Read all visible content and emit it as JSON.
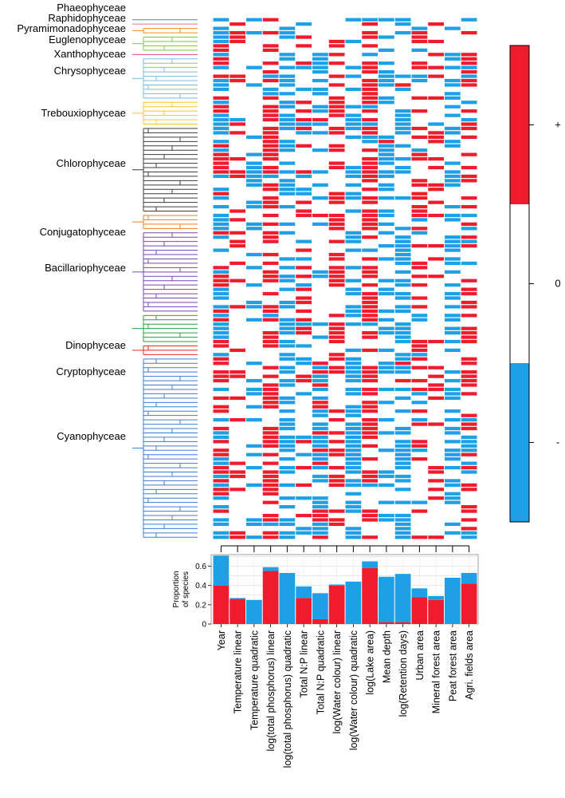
{
  "chart_data": [
    {
      "type": "heatmap",
      "title": "",
      "legend": {
        "plus_label": "+",
        "zero_label": "0",
        "minus_label": "-",
        "positive_color": "#f01b2d",
        "zero_color": "#ffffff",
        "negative_color": "#1ea0e6"
      },
      "taxonomic_groups": [
        {
          "name": "Phaeophyceae",
          "color": "#7a7a7a",
          "n": 1
        },
        {
          "name": "Raphidophyceae",
          "color": "#e07b7b",
          "n": 1
        },
        {
          "name": "Pyramimonadophyceae",
          "color": "#f08c1e",
          "n": 2
        },
        {
          "name": "Euglenophyceae",
          "color": "#7dc83c",
          "n": 4
        },
        {
          "name": "Xanthophyceae",
          "color": "#e6467a",
          "n": 1
        },
        {
          "name": "Chrysophyceae",
          "color": "#78bce6",
          "n": 10
        },
        {
          "name": "Trebouxiophyceae",
          "color": "#f5c81e",
          "n": 6
        },
        {
          "name": "Chlorophyceae",
          "color": "#3c3c3c",
          "n": 20
        },
        {
          "name": "Conjugatophyceae",
          "color": "#f07d1e",
          "n": 4
        },
        {
          "name": "Bacillariophyceae",
          "color": "#7846b4",
          "n": 19
        },
        {
          "name": "Dinophyceae",
          "color": "#28a03c",
          "n": 7
        },
        {
          "name": "Cryptophyceae",
          "color": "#e6281e",
          "n": 3
        },
        {
          "name": "Cyanophyceae",
          "color": "#3c7dd2",
          "n": 42
        }
      ],
      "n_taxa": 120,
      "predictors": [
        "Year",
        "Temperature linear",
        "Temperature quadratic",
        "log(total phosphorus) linear",
        "log(total phosphorus) quadratic",
        "Total N:P linear",
        "Total N:P quadratic",
        "log(Water colour) linear",
        "log(Water colour) quadratic",
        "log(Lake area)",
        "Mean depth",
        "log(Retention days)",
        "Urban area",
        "Mineral forest area",
        "Peat forest area",
        "Agri. fields area"
      ]
    },
    {
      "type": "bar",
      "stacked": true,
      "ylabel": "Proportion of species",
      "ylim": [
        0,
        0.72
      ],
      "yticks": [
        "0",
        "0.2",
        "0.4",
        "0.6"
      ],
      "ytick_values": [
        0,
        0.2,
        0.4,
        0.6
      ],
      "categories": [
        "Year",
        "Temperature linear",
        "Temperature quadratic",
        "log(total phosphorus) linear",
        "log(total phosphorus) quadratic",
        "Total N:P linear",
        "Total N:P quadratic",
        "log(Water colour) linear",
        "log(Water colour) quadratic",
        "log(Lake area)",
        "Mean depth",
        "log(Retention days)",
        "Urban area",
        "Mineral forest area",
        "Peat forest area",
        "Agri. fields area"
      ],
      "series": [
        {
          "name": "positive",
          "color": "#f01b2d",
          "values": [
            0.4,
            0.26,
            0.0,
            0.55,
            0.0,
            0.27,
            0.05,
            0.4,
            0.0,
            0.58,
            0.02,
            0.02,
            0.28,
            0.25,
            0.0,
            0.42
          ]
        },
        {
          "name": "negative",
          "color": "#1ea0e6",
          "values": [
            0.31,
            0.01,
            0.25,
            0.04,
            0.53,
            0.12,
            0.27,
            0.01,
            0.44,
            0.07,
            0.47,
            0.5,
            0.09,
            0.04,
            0.48,
            0.11
          ]
        }
      ]
    }
  ]
}
